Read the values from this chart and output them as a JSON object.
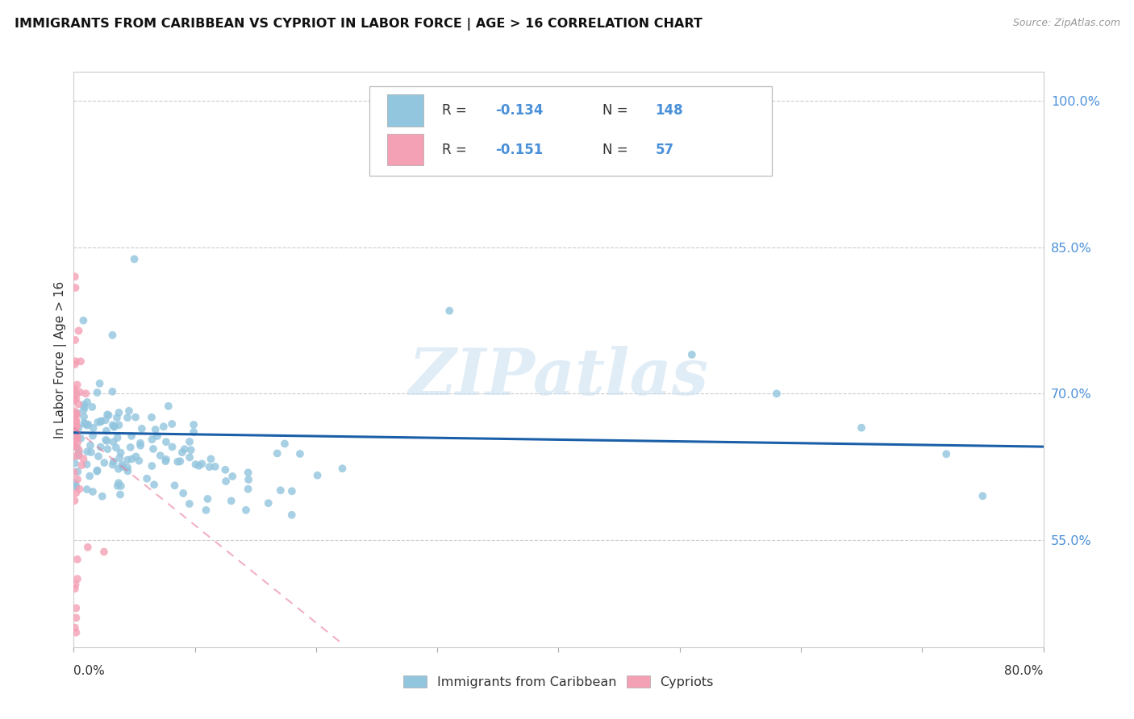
{
  "title": "IMMIGRANTS FROM CARIBBEAN VS CYPRIOT IN LABOR FORCE | AGE > 16 CORRELATION CHART",
  "source": "Source: ZipAtlas.com",
  "ylabel_label": "In Labor Force | Age > 16",
  "xmin": 0.0,
  "xmax": 0.8,
  "ymin": 0.44,
  "ymax": 1.03,
  "legend_r_caribbean": "-0.134",
  "legend_n_caribbean": "148",
  "legend_r_cypriot": "-0.151",
  "legend_n_cypriot": "57",
  "caribbean_color": "#92c5de",
  "cypriot_color": "#f4a0b5",
  "trendline_caribbean_color": "#1a5fa8",
  "trendline_cypriot_color": "#e87090",
  "watermark": "ZIPatlas",
  "watermark_color": "#c8dff0",
  "right_yticks": [
    0.55,
    0.7,
    0.85,
    1.0
  ],
  "right_ytick_labels": [
    "55.0%",
    "70.0%",
    "85.0%",
    "100.0%"
  ]
}
